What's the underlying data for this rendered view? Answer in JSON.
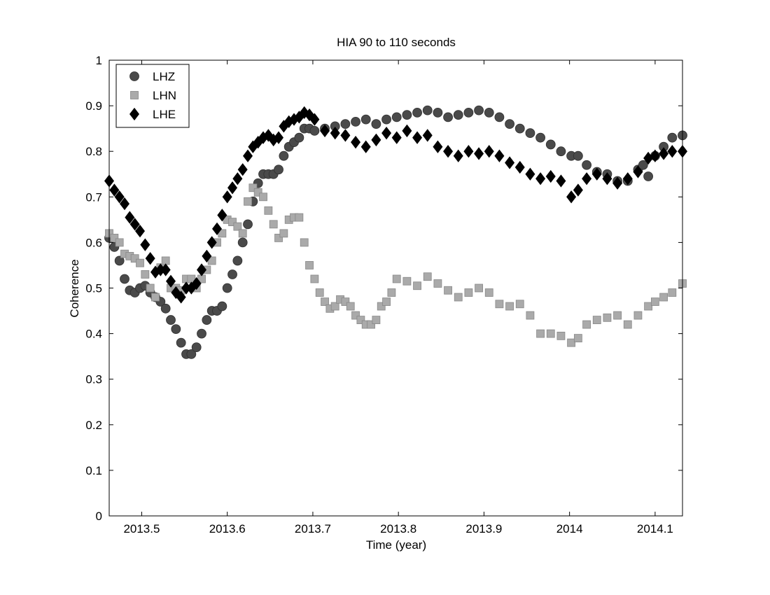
{
  "chart_data": {
    "type": "scatter",
    "title": "HIA 90 to 110 seconds",
    "xlabel": "Time (year)",
    "ylabel": "Coherence",
    "xlim": [
      2013.462,
      2014.132
    ],
    "ylim": [
      0,
      1
    ],
    "xticks": [
      2013.5,
      2013.6,
      2013.7,
      2013.8,
      2013.9,
      2014,
      2014.1
    ],
    "xtick_labels": [
      "2013.5",
      "2013.6",
      "2013.7",
      "2013.8",
      "2013.9",
      "2014",
      "2014.1"
    ],
    "yticks": [
      0,
      0.1,
      0.2,
      0.3,
      0.4,
      0.5,
      0.6,
      0.7,
      0.8,
      0.9,
      1
    ],
    "ytick_labels": [
      "0",
      "0.1",
      "0.2",
      "0.3",
      "0.4",
      "0.5",
      "0.6",
      "0.7",
      "0.8",
      "0.9",
      "1"
    ],
    "grid": false,
    "legend_position": "top-left",
    "series": [
      {
        "name": "LHZ",
        "marker": "circle",
        "color": "#4a4a4a",
        "x": [
          2013.462,
          2013.468,
          2013.474,
          2013.48,
          2013.486,
          2013.492,
          2013.498,
          2013.504,
          2013.51,
          2013.516,
          2013.522,
          2013.528,
          2013.534,
          2013.54,
          2013.546,
          2013.552,
          2013.558,
          2013.564,
          2013.57,
          2013.576,
          2013.582,
          2013.588,
          2013.594,
          2013.6,
          2013.606,
          2013.612,
          2013.618,
          2013.624,
          2013.63,
          2013.636,
          2013.642,
          2013.648,
          2013.654,
          2013.66,
          2013.666,
          2013.672,
          2013.678,
          2013.684,
          2013.69,
          2013.696,
          2013.702,
          2013.714,
          2013.726,
          2013.738,
          2013.75,
          2013.762,
          2013.774,
          2013.786,
          2013.798,
          2013.81,
          2013.822,
          2013.834,
          2013.846,
          2013.858,
          2013.87,
          2013.882,
          2013.894,
          2013.906,
          2013.918,
          2013.93,
          2013.942,
          2013.954,
          2013.966,
          2013.978,
          2013.99,
          2014.002,
          2014.01,
          2014.02,
          2014.032,
          2014.044,
          2014.056,
          2014.068,
          2014.08,
          2014.086,
          2014.092,
          2014.1,
          2014.11,
          2014.12,
          2014.132
        ],
        "values": [
          0.61,
          0.59,
          0.56,
          0.52,
          0.495,
          0.49,
          0.5,
          0.505,
          0.49,
          0.48,
          0.47,
          0.455,
          0.43,
          0.41,
          0.38,
          0.355,
          0.355,
          0.37,
          0.4,
          0.43,
          0.45,
          0.45,
          0.46,
          0.5,
          0.53,
          0.56,
          0.6,
          0.64,
          0.69,
          0.73,
          0.75,
          0.75,
          0.75,
          0.76,
          0.79,
          0.81,
          0.82,
          0.83,
          0.85,
          0.85,
          0.845,
          0.85,
          0.855,
          0.86,
          0.865,
          0.87,
          0.86,
          0.87,
          0.875,
          0.88,
          0.885,
          0.89,
          0.885,
          0.875,
          0.88,
          0.885,
          0.89,
          0.885,
          0.875,
          0.86,
          0.85,
          0.84,
          0.83,
          0.815,
          0.8,
          0.79,
          0.79,
          0.77,
          0.755,
          0.75,
          0.735,
          0.735,
          0.76,
          0.77,
          0.745,
          0.79,
          0.81,
          0.83,
          0.835
        ]
      },
      {
        "name": "LHN",
        "marker": "square",
        "color": "#aaaaaa",
        "x": [
          2013.462,
          2013.468,
          2013.474,
          2013.48,
          2013.486,
          2013.492,
          2013.498,
          2013.504,
          2013.51,
          2013.516,
          2013.522,
          2013.528,
          2013.534,
          2013.54,
          2013.546,
          2013.552,
          2013.558,
          2013.564,
          2013.57,
          2013.576,
          2013.582,
          2013.588,
          2013.594,
          2013.6,
          2013.606,
          2013.612,
          2013.618,
          2013.624,
          2013.63,
          2013.636,
          2013.642,
          2013.648,
          2013.654,
          2013.66,
          2013.666,
          2013.672,
          2013.678,
          2013.684,
          2013.69,
          2013.696,
          2013.702,
          2013.708,
          2013.714,
          2013.72,
          2013.726,
          2013.732,
          2013.738,
          2013.744,
          2013.75,
          2013.756,
          2013.762,
          2013.768,
          2013.774,
          2013.78,
          2013.786,
          2013.792,
          2013.798,
          2013.81,
          2013.822,
          2013.834,
          2013.846,
          2013.858,
          2013.87,
          2013.882,
          2013.894,
          2013.906,
          2013.918,
          2013.93,
          2013.942,
          2013.954,
          2013.966,
          2013.978,
          2013.99,
          2014.002,
          2014.01,
          2014.02,
          2014.032,
          2014.044,
          2014.056,
          2014.068,
          2014.08,
          2014.092,
          2014.1,
          2014.11,
          2014.12,
          2014.132
        ],
        "values": [
          0.62,
          0.61,
          0.6,
          0.575,
          0.57,
          0.565,
          0.555,
          0.53,
          0.5,
          0.48,
          0.545,
          0.56,
          0.5,
          0.5,
          0.495,
          0.52,
          0.52,
          0.5,
          0.52,
          0.54,
          0.56,
          0.6,
          0.62,
          0.65,
          0.645,
          0.635,
          0.62,
          0.69,
          0.72,
          0.71,
          0.7,
          0.67,
          0.64,
          0.61,
          0.62,
          0.65,
          0.655,
          0.655,
          0.6,
          0.55,
          0.52,
          0.49,
          0.47,
          0.455,
          0.46,
          0.475,
          0.47,
          0.46,
          0.44,
          0.43,
          0.42,
          0.42,
          0.43,
          0.46,
          0.47,
          0.49,
          0.52,
          0.515,
          0.505,
          0.525,
          0.51,
          0.495,
          0.48,
          0.49,
          0.5,
          0.49,
          0.465,
          0.46,
          0.465,
          0.44,
          0.4,
          0.4,
          0.395,
          0.38,
          0.39,
          0.42,
          0.43,
          0.435,
          0.44,
          0.42,
          0.44,
          0.46,
          0.47,
          0.48,
          0.49,
          0.51
        ]
      },
      {
        "name": "LHE",
        "marker": "diamond",
        "color": "#000000",
        "x": [
          2013.462,
          2013.468,
          2013.474,
          2013.48,
          2013.486,
          2013.492,
          2013.498,
          2013.504,
          2013.51,
          2013.516,
          2013.522,
          2013.528,
          2013.534,
          2013.54,
          2013.546,
          2013.552,
          2013.558,
          2013.564,
          2013.57,
          2013.576,
          2013.582,
          2013.588,
          2013.594,
          2013.6,
          2013.606,
          2013.612,
          2013.618,
          2013.624,
          2013.63,
          2013.636,
          2013.642,
          2013.648,
          2013.654,
          2013.66,
          2013.666,
          2013.672,
          2013.678,
          2013.684,
          2013.69,
          2013.696,
          2013.702,
          2013.714,
          2013.726,
          2013.738,
          2013.75,
          2013.762,
          2013.774,
          2013.786,
          2013.798,
          2013.81,
          2013.822,
          2013.834,
          2013.846,
          2013.858,
          2013.87,
          2013.882,
          2013.894,
          2013.906,
          2013.918,
          2013.93,
          2013.942,
          2013.954,
          2013.966,
          2013.978,
          2013.99,
          2014.002,
          2014.01,
          2014.02,
          2014.032,
          2014.044,
          2014.056,
          2014.068,
          2014.08,
          2014.092,
          2014.1,
          2014.11,
          2014.12,
          2014.132
        ],
        "values": [
          0.735,
          0.715,
          0.7,
          0.685,
          0.655,
          0.64,
          0.625,
          0.595,
          0.565,
          0.535,
          0.54,
          0.54,
          0.515,
          0.49,
          0.48,
          0.5,
          0.5,
          0.51,
          0.54,
          0.57,
          0.6,
          0.63,
          0.66,
          0.7,
          0.72,
          0.74,
          0.76,
          0.79,
          0.81,
          0.82,
          0.83,
          0.835,
          0.825,
          0.83,
          0.855,
          0.865,
          0.87,
          0.875,
          0.885,
          0.88,
          0.87,
          0.845,
          0.84,
          0.835,
          0.82,
          0.81,
          0.825,
          0.84,
          0.83,
          0.845,
          0.83,
          0.835,
          0.81,
          0.8,
          0.79,
          0.8,
          0.795,
          0.8,
          0.79,
          0.775,
          0.765,
          0.75,
          0.74,
          0.745,
          0.735,
          0.7,
          0.715,
          0.74,
          0.75,
          0.74,
          0.73,
          0.74,
          0.755,
          0.785,
          0.79,
          0.795,
          0.8,
          0.8
        ]
      }
    ]
  }
}
